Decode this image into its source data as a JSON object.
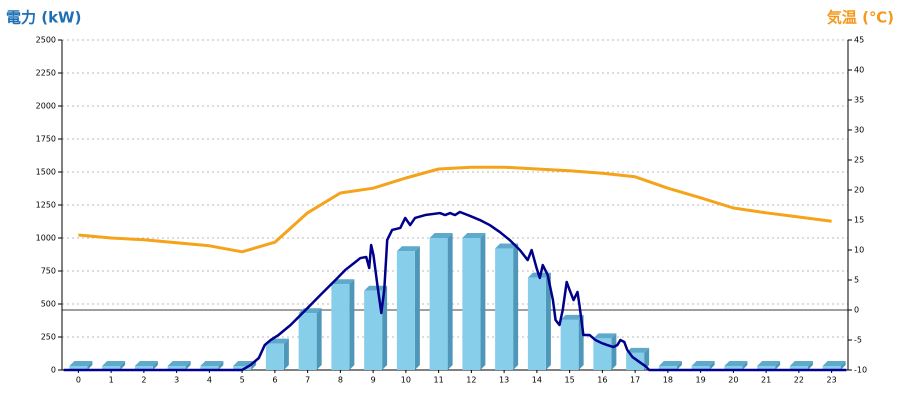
{
  "chart_data": {
    "type": "combo",
    "y_label": "電力 (kW)",
    "y2_label": "気温 (℃)",
    "xlim": [
      -0.5,
      23.5
    ],
    "xticks": [
      0,
      1,
      2,
      3,
      4,
      5,
      6,
      7,
      8,
      9,
      10,
      11,
      12,
      13,
      14,
      15,
      16,
      17,
      18,
      19,
      20,
      21,
      22,
      23
    ],
    "ylim": [
      0,
      2500
    ],
    "yticks": [
      0,
      250,
      500,
      750,
      1000,
      1250,
      1500,
      1750,
      2000,
      2250,
      2500
    ],
    "y2lim": [
      -10,
      45
    ],
    "y2ticks": [
      -10,
      -5,
      0,
      5,
      10,
      15,
      20,
      25,
      30,
      35,
      40,
      45
    ],
    "grid": true,
    "series": [
      {
        "type": "bar",
        "color": "#87ceeb",
        "x": [
          0,
          1,
          2,
          3,
          4,
          5,
          6,
          7,
          8,
          9,
          10,
          11,
          12,
          13,
          14,
          15,
          16,
          17,
          18,
          19,
          20,
          21,
          22,
          23
        ],
        "values": [
          0,
          0,
          0,
          0,
          0,
          0,
          200,
          430,
          650,
          600,
          900,
          1000,
          1000,
          920,
          700,
          380,
          240,
          130,
          0,
          0,
          0,
          0,
          0,
          0
        ]
      },
      {
        "type": "line",
        "color": "#00008b",
        "x": [
          -0.45,
          5.0,
          5.26,
          5.51,
          5.69,
          5.87,
          6.11,
          6.48,
          6.94,
          7.39,
          7.85,
          8.15,
          8.46,
          8.61,
          8.79,
          8.88,
          8.94,
          9.01,
          9.13,
          9.25,
          9.34,
          9.43,
          9.58,
          9.83,
          9.98,
          10.13,
          10.28,
          10.59,
          11.04,
          11.2,
          11.35,
          11.5,
          11.65,
          11.96,
          12.26,
          12.56,
          12.87,
          13.17,
          13.48,
          13.72,
          13.84,
          13.99,
          14.09,
          14.18,
          14.33,
          14.49,
          14.57,
          14.69,
          14.79,
          14.91,
          15.0,
          15.12,
          15.24,
          15.3,
          15.42,
          15.61,
          15.79,
          15.97,
          16.15,
          16.34,
          16.46,
          16.55,
          16.67,
          16.76,
          16.92,
          17.13,
          17.31,
          17.43,
          23.45
        ],
        "values": [
          0,
          0,
          38,
          91,
          189,
          227,
          265,
          341,
          455,
          568,
          682,
          758,
          818,
          848,
          856,
          773,
          947,
          871,
          644,
          432,
          606,
          985,
          1061,
          1076,
          1152,
          1098,
          1152,
          1174,
          1189,
          1174,
          1189,
          1174,
          1197,
          1167,
          1136,
          1098,
          1045,
          985,
          909,
          833,
          909,
          773,
          697,
          795,
          720,
          530,
          379,
          341,
          455,
          667,
          606,
          530,
          591,
          492,
          265,
          265,
          227,
          205,
          189,
          174,
          189,
          227,
          212,
          152,
          98,
          61,
          30,
          0,
          0
        ]
      },
      {
        "type": "line",
        "axis": "y2",
        "color": "#f5a31a",
        "x": [
          0,
          1,
          2,
          3,
          4,
          5,
          6,
          7,
          8,
          9,
          10,
          11,
          12,
          13,
          14,
          15,
          16,
          17,
          18,
          19,
          20,
          21,
          22,
          23
        ],
        "values": [
          12.5,
          12,
          11.7,
          11.2,
          10.7,
          9.7,
          11.3,
          16.2,
          19.5,
          20.3,
          22,
          23.5,
          23.8,
          23.8,
          23.5,
          23.2,
          22.8,
          22.2,
          20.3,
          18.7,
          17,
          16.2,
          15.5,
          14.8
        ]
      }
    ]
  }
}
